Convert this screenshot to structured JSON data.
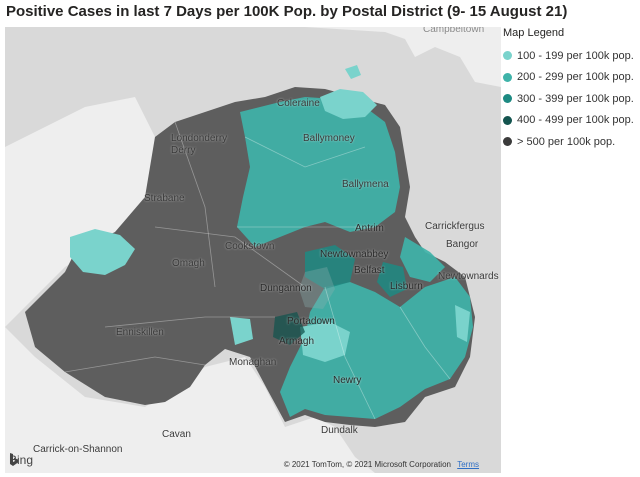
{
  "title": "Positive Cases in last 7 Days per 100K Pop. by Postal District (9- 15 August 21)",
  "legend": {
    "title": "Map Legend",
    "items": [
      {
        "label": "100 - 199 per 100k pop.",
        "color": "#7ad3cc"
      },
      {
        "label": "200 - 299 per 100k pop.",
        "color": "#3fb3a9"
      },
      {
        "label": "300 - 399 per 100k pop.",
        "color": "#1d8a82"
      },
      {
        "label": "400 - 499 per 100k pop.",
        "color": "#14544f"
      },
      {
        "label": "> 500 per 100k pop.",
        "color": "#3b3b3b"
      }
    ]
  },
  "places": {
    "campbeltown": "Campbeltown",
    "coleraine": "Coleraine",
    "ballymoney": "Ballymoney",
    "londonderry": "Londonderry",
    "derry": "Derry",
    "ballymena": "Ballymena",
    "strabane": "Strabane",
    "carrickfergus": "Carrickfergus",
    "antrim": "Antrim",
    "bangor": "Bangor",
    "cookstown": "Cookstown",
    "newtownabbey": "Newtownabbey",
    "omagh": "Omagh",
    "belfast": "Belfast",
    "newtownards": "Newtownards",
    "lisburn": "Lisburn",
    "dungannon": "Dungannon",
    "enniskillen": "Enniskillen",
    "portadown": "Portadown",
    "armagh": "Armagh",
    "monaghan": "Monaghan",
    "newry": "Newry",
    "dundalk": "Dundalk",
    "cavan": "Cavan",
    "carrick_on_shannon": "Carrick-on-Shannon"
  },
  "map": {
    "provider": "Bing",
    "copyright": "© 2021 TomTom, © 2021 Microsoft Corporation",
    "terms": "Terms"
  }
}
